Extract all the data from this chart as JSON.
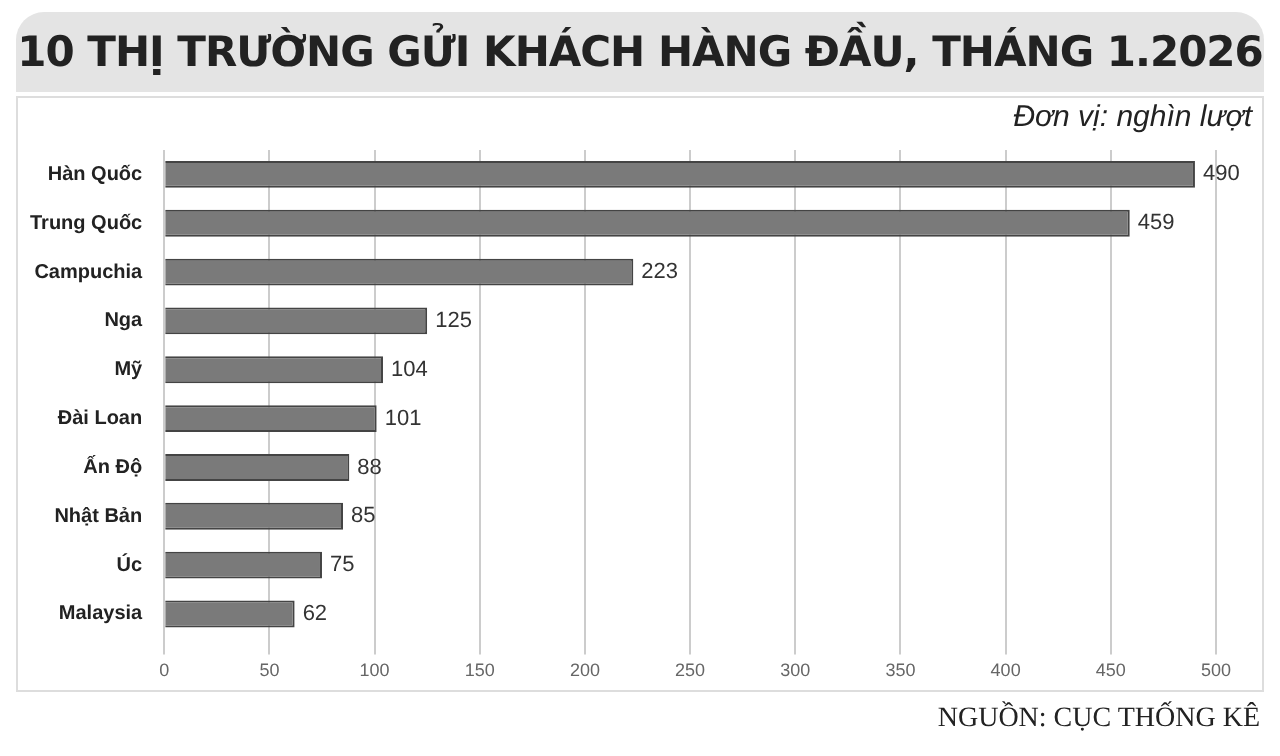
{
  "chart_data": {
    "type": "bar",
    "orientation": "horizontal",
    "title": "10 THỊ TRƯỜNG GỬI KHÁCH HÀNG ĐẦU, THÁNG 1.2026",
    "categories": [
      "Hàn Quốc",
      "Trung Quốc",
      "Campuchia",
      "Nga",
      "Mỹ",
      "Đài Loan",
      "Ấn Độ",
      "Nhật Bản",
      "Úc",
      "Malaysia"
    ],
    "values": [
      490,
      459,
      223,
      125,
      104,
      101,
      88,
      85,
      75,
      62
    ],
    "color": "#7a7a7a",
    "xlim": [
      0,
      500
    ],
    "xticks": [
      0,
      50,
      100,
      150,
      200,
      250,
      300,
      350,
      400,
      450,
      500
    ],
    "grid": "x",
    "legend": false,
    "data_labels": true,
    "annotations": [
      "Đơn vị: nghìn lượt",
      "NGUỒN: CỤC THỐNG KÊ"
    ]
  }
}
